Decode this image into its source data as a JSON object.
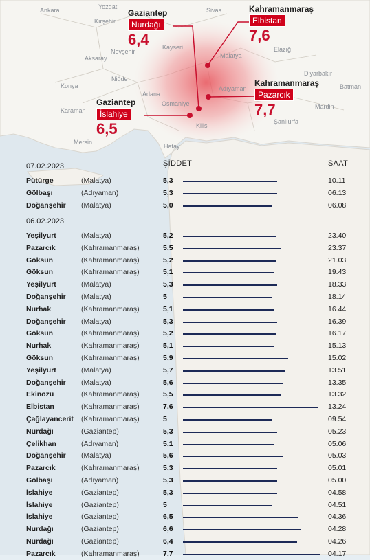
{
  "map": {
    "cities": [
      {
        "name": "Ankara"
      },
      {
        "name": "Kırşehir"
      },
      {
        "name": "Yozgat"
      },
      {
        "name": "Sivas"
      },
      {
        "name": "Kayseri"
      },
      {
        "name": "Nevşehir"
      },
      {
        "name": "Aksaray"
      },
      {
        "name": "Malatya"
      },
      {
        "name": "Elazığ"
      },
      {
        "name": "Niğde"
      },
      {
        "name": "Konya"
      },
      {
        "name": "Adana"
      },
      {
        "name": "Osmaniye"
      },
      {
        "name": "Adıyaman"
      },
      {
        "name": "Diyarbakır"
      },
      {
        "name": "Batman"
      },
      {
        "name": "Karaman"
      },
      {
        "name": "Mardin"
      },
      {
        "name": "Şanlıurfa"
      },
      {
        "name": "Kilis"
      },
      {
        "name": "Mersin"
      },
      {
        "name": "Hatay"
      }
    ],
    "callouts": [
      {
        "province": "Gaziantep",
        "district": "Nurdağı",
        "magnitude": "6,4"
      },
      {
        "province": "Kahramanmaraş",
        "district": "Elbistan",
        "magnitude": "7,6"
      },
      {
        "province": "Kahramanmaraş",
        "district": "Pazarcık",
        "magnitude": "7,7"
      },
      {
        "province": "Gaziantep",
        "district": "İslahiye",
        "magnitude": "6,5"
      }
    ]
  },
  "table": {
    "col_severity": "ŞİDDET",
    "col_time": "SAAT",
    "groups": [
      {
        "date": "07.02.2023",
        "rows": [
          {
            "place": "Pütürge",
            "province": "(Malatya)",
            "mag": "5,3",
            "value": 5.3,
            "time": "10.11"
          },
          {
            "place": "Gölbaşı",
            "province": "(Adıyaman)",
            "mag": "5,3",
            "value": 5.3,
            "time": "06.13"
          },
          {
            "place": "Doğanşehir",
            "province": "(Malatya)",
            "mag": "5,0",
            "value": 5.0,
            "time": "06.08"
          }
        ]
      },
      {
        "date": "06.02.2023",
        "rows": [
          {
            "place": "Yeşilyurt",
            "province": "(Malatya)",
            "mag": "5,2",
            "value": 5.2,
            "time": "23.40"
          },
          {
            "place": "Pazarcık",
            "province": "(Kahramanmaraş)",
            "mag": "5,5",
            "value": 5.5,
            "time": "23.37"
          },
          {
            "place": "Göksun",
            "province": "(Kahramanmaraş)",
            "mag": "5,2",
            "value": 5.2,
            "time": "21.03"
          },
          {
            "place": "Göksun",
            "province": "(Kahramanmaraş)",
            "mag": "5,1",
            "value": 5.1,
            "time": "19.43"
          },
          {
            "place": "Yeşilyurt",
            "province": "(Malatya)",
            "mag": "5,3",
            "value": 5.3,
            "time": "18.33"
          },
          {
            "place": "Doğanşehir",
            "province": "(Malatya)",
            "mag": "5",
            "value": 5.0,
            "time": "18.14"
          },
          {
            "place": "Nurhak",
            "province": "(Kahramanmaraş)",
            "mag": "5,1",
            "value": 5.1,
            "time": "16.44"
          },
          {
            "place": "Doğanşehir",
            "province": "(Malatya)",
            "mag": "5,3",
            "value": 5.3,
            "time": "16.39"
          },
          {
            "place": "Göksun",
            "province": "(Kahramanmaraş)",
            "mag": "5,2",
            "value": 5.2,
            "time": "16.17"
          },
          {
            "place": "Nurhak",
            "province": "(Kahramanmaraş)",
            "mag": "5,1",
            "value": 5.1,
            "time": "15.13"
          },
          {
            "place": "Göksun",
            "province": "(Kahramanmaraş)",
            "mag": "5,9",
            "value": 5.9,
            "time": "15.02"
          },
          {
            "place": "Yeşilyurt",
            "province": "(Malatya)",
            "mag": "5,7",
            "value": 5.7,
            "time": "13.51"
          },
          {
            "place": "Doğanşehir",
            "province": "(Malatya)",
            "mag": "5,6",
            "value": 5.6,
            "time": "13.35"
          },
          {
            "place": "Ekinözü",
            "province": "(Kahramanmaraş)",
            "mag": "5,5",
            "value": 5.5,
            "time": "13.32"
          },
          {
            "place": "Elbistan",
            "province": "(Kahramanmaraş)",
            "mag": "7,6",
            "value": 7.6,
            "time": "13.24"
          },
          {
            "place": "Çağlayancerit",
            "province": "(Kahramanmaraş)",
            "mag": "5",
            "value": 5.0,
            "time": "09.54"
          },
          {
            "place": "Nurdağı",
            "province": "(Gaziantep)",
            "mag": "5,3",
            "value": 5.3,
            "time": "05.23"
          },
          {
            "place": "Çelikhan",
            "province": "(Adıyaman)",
            "mag": "5,1",
            "value": 5.1,
            "time": "05.06"
          },
          {
            "place": "Doğanşehir",
            "province": "(Malatya)",
            "mag": "5,6",
            "value": 5.6,
            "time": "05.03"
          },
          {
            "place": "Pazarcık",
            "province": "(Kahramanmaraş)",
            "mag": "5,3",
            "value": 5.3,
            "time": "05.01"
          },
          {
            "place": "Gölbaşı",
            "province": "(Adıyaman)",
            "mag": "5,3",
            "value": 5.3,
            "time": "05.00"
          },
          {
            "place": "İslahiye",
            "province": "(Gaziantep)",
            "mag": "5,3",
            "value": 5.3,
            "time": "04.58"
          },
          {
            "place": "İslahiye",
            "province": "(Gaziantep)",
            "mag": "5",
            "value": 5.0,
            "time": "04.51"
          },
          {
            "place": "İslahiye",
            "province": "(Gaziantep)",
            "mag": "6,5",
            "value": 6.5,
            "time": "04.36"
          },
          {
            "place": "Nurdağı",
            "province": "(Gaziantep)",
            "mag": "6,6",
            "value": 6.6,
            "time": "04.28"
          },
          {
            "place": "Nurdağı",
            "province": "(Gaziantep)",
            "mag": "6,4",
            "value": 6.4,
            "time": "04.26"
          },
          {
            "place": "Pazarcık",
            "province": "(Kahramanmaraş)",
            "mag": "7,7",
            "value": 7.7,
            "time": "04.17"
          }
        ]
      }
    ]
  },
  "colors": {
    "accent": "#d0021b",
    "bar": "#1d2a57",
    "land": "#f6f5f1",
    "sea": "#dfe8ee"
  }
}
